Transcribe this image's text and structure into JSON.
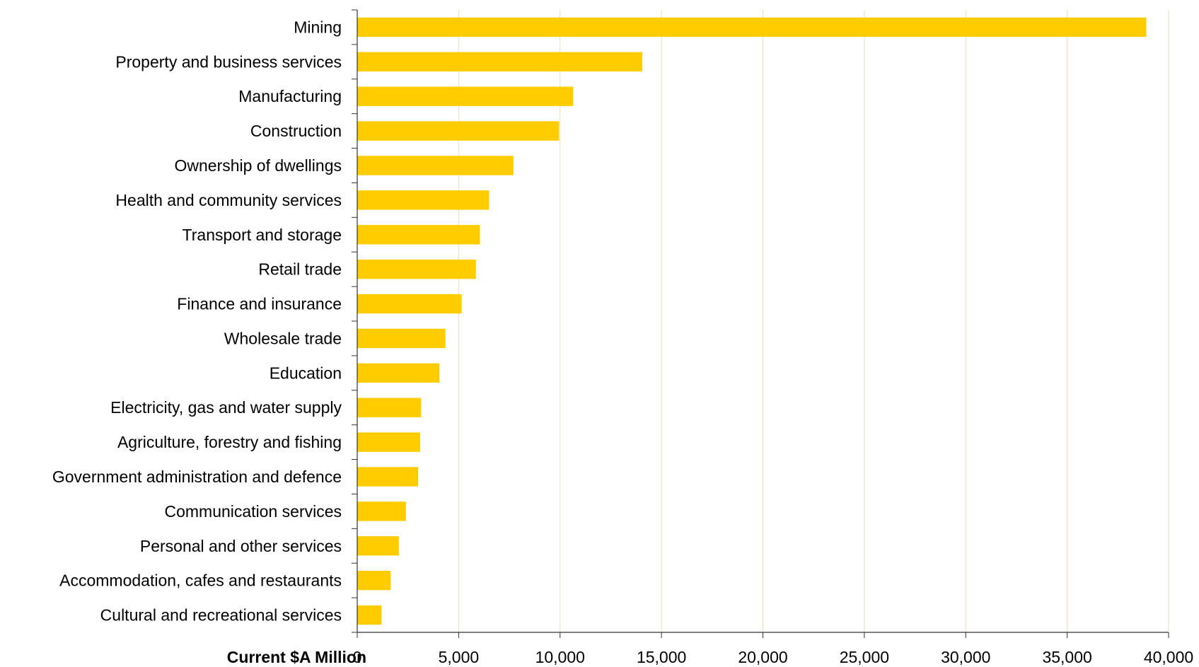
{
  "chart_data": {
    "type": "bar",
    "orientation": "horizontal",
    "categories": [
      "Mining",
      "Property and business services",
      "Manufacturing",
      "Construction",
      "Ownership of dwellings",
      "Health and community services",
      "Transport and storage",
      "Retail trade",
      "Finance and insurance",
      "Wholesale trade",
      "Education",
      "Electricity, gas and water supply",
      "Agriculture, forestry and fishing",
      "Government administration and defence",
      "Communication services",
      "Personal and other services",
      "Accommodation, cafes and restaurants",
      "Cultural and recreational services"
    ],
    "values": [
      38900,
      14050,
      10650,
      9950,
      7700,
      6500,
      6050,
      5850,
      5150,
      4350,
      4050,
      3150,
      3100,
      3000,
      2400,
      2050,
      1650,
      1200
    ],
    "xlabel": "Current $A Million",
    "xlim": [
      0,
      40000
    ],
    "xticks": [
      "0",
      "5,000",
      "10,000",
      "15,000",
      "20,000",
      "25,000",
      "30,000",
      "35,000",
      "40,000"
    ],
    "grid": "vertical",
    "bar_color": "#FFCC00",
    "grid_color": "#F5D9B5"
  }
}
